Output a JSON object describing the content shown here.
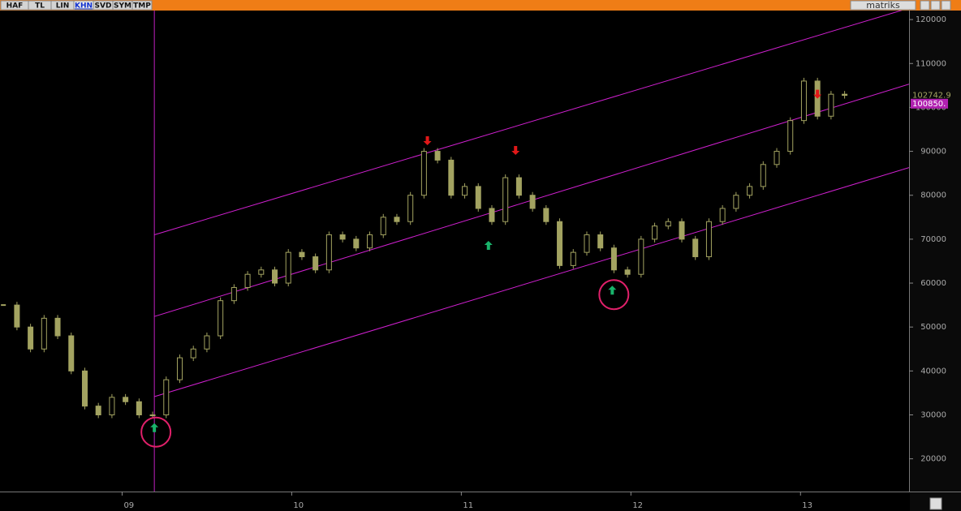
{
  "toolbar": {
    "buttons": [
      "HAF",
      "TL",
      "LIN",
      "KHN",
      "SVD",
      "SYM",
      "TMP"
    ],
    "selected": 3,
    "logo": "matriks"
  },
  "chart_data": {
    "type": "candlestick",
    "x": [
      2008.3,
      2008.38,
      2008.46,
      2008.54,
      2008.62,
      2008.7,
      2008.78,
      2008.86,
      2008.94,
      2009.02,
      2009.1,
      2009.18,
      2009.26,
      2009.34,
      2009.42,
      2009.5,
      2009.58,
      2009.66,
      2009.74,
      2009.82,
      2009.9,
      2009.98,
      2010.06,
      2010.14,
      2010.22,
      2010.3,
      2010.38,
      2010.46,
      2010.54,
      2010.62,
      2010.7,
      2010.78,
      2010.86,
      2010.94,
      2011.02,
      2011.1,
      2011.18,
      2011.26,
      2011.34,
      2011.42,
      2011.5,
      2011.58,
      2011.66,
      2011.74,
      2011.82,
      2011.9,
      2011.98,
      2012.06,
      2012.14,
      2012.22,
      2012.3,
      2012.38,
      2012.46,
      2012.54,
      2012.62,
      2012.7,
      2012.78,
      2012.86,
      2012.94,
      2013.02,
      2013.1,
      2013.18,
      2013.26
    ],
    "series": [
      {
        "color": "#a3a361",
        "values": [
          55000,
          50000,
          45000,
          52000,
          48000,
          40000,
          32000,
          30000,
          34000,
          33000,
          30000,
          30000,
          38000,
          43000,
          45000,
          48000,
          56000,
          59000,
          62000,
          63000,
          60000,
          67000,
          66000,
          63000,
          71000,
          70000,
          68000,
          71000,
          75000,
          74000,
          80000,
          90000,
          88000,
          80000,
          82000,
          77000,
          74000,
          84000,
          80000,
          77000,
          74000,
          64000,
          67000,
          71000,
          68000,
          63000,
          62000,
          70000,
          73000,
          74000,
          70000,
          66000,
          74000,
          77000,
          80000,
          82000,
          87000,
          90000,
          97000,
          106000,
          98000,
          103000,
          102742.9
        ]
      }
    ],
    "lines": [
      {
        "color": "#d020d0",
        "x": [
          2009.19,
          2013.64
        ],
        "values": [
          71000,
          122600
        ]
      },
      {
        "color": "#d020d0",
        "x": [
          2009.19,
          2013.64
        ],
        "values": [
          52400,
          105300
        ]
      },
      {
        "color": "#d020d0",
        "x": [
          2009.19,
          2013.64
        ],
        "values": [
          34150,
          86300
        ]
      }
    ],
    "vline": {
      "color": "#c020c0",
      "x": 2009.19
    },
    "markers": [
      {
        "direction": "up",
        "color": "#19b36b",
        "x": 2009.19,
        "value": 27000,
        "circled": true
      },
      {
        "direction": "up",
        "color": "#19b36b",
        "x": 2011.16,
        "value": 68500,
        "circled": false
      },
      {
        "direction": "up",
        "color": "#19b36b",
        "x": 2011.89,
        "value": 58300,
        "circled": true
      },
      {
        "direction": "down",
        "color": "#e01818",
        "x": 2010.8,
        "value": 92500,
        "circled": false
      },
      {
        "direction": "down",
        "color": "#e01818",
        "x": 2011.32,
        "value": 90300,
        "circled": false
      },
      {
        "direction": "down",
        "color": "#e01818",
        "x": 2013.1,
        "value": 103100,
        "circled": false
      }
    ],
    "circle_color": "#e0206a",
    "price_labels": [
      {
        "value": 102742.9,
        "label": "102742.9",
        "box": false
      },
      {
        "value": 100850,
        "label": "100850.",
        "box": true
      }
    ],
    "xlim": [
      2008.28,
      2013.64
    ],
    "xticks": [
      {
        "value": 2009,
        "label": "09"
      },
      {
        "value": 2010,
        "label": "10"
      },
      {
        "value": 2011,
        "label": "11"
      },
      {
        "value": 2012,
        "label": "12"
      },
      {
        "value": 2013,
        "label": "13"
      }
    ],
    "ylim": [
      12550,
      122050
    ],
    "yticks": [
      20000,
      30000,
      40000,
      50000,
      60000,
      70000,
      80000,
      90000,
      100000,
      110000,
      120000
    ]
  }
}
